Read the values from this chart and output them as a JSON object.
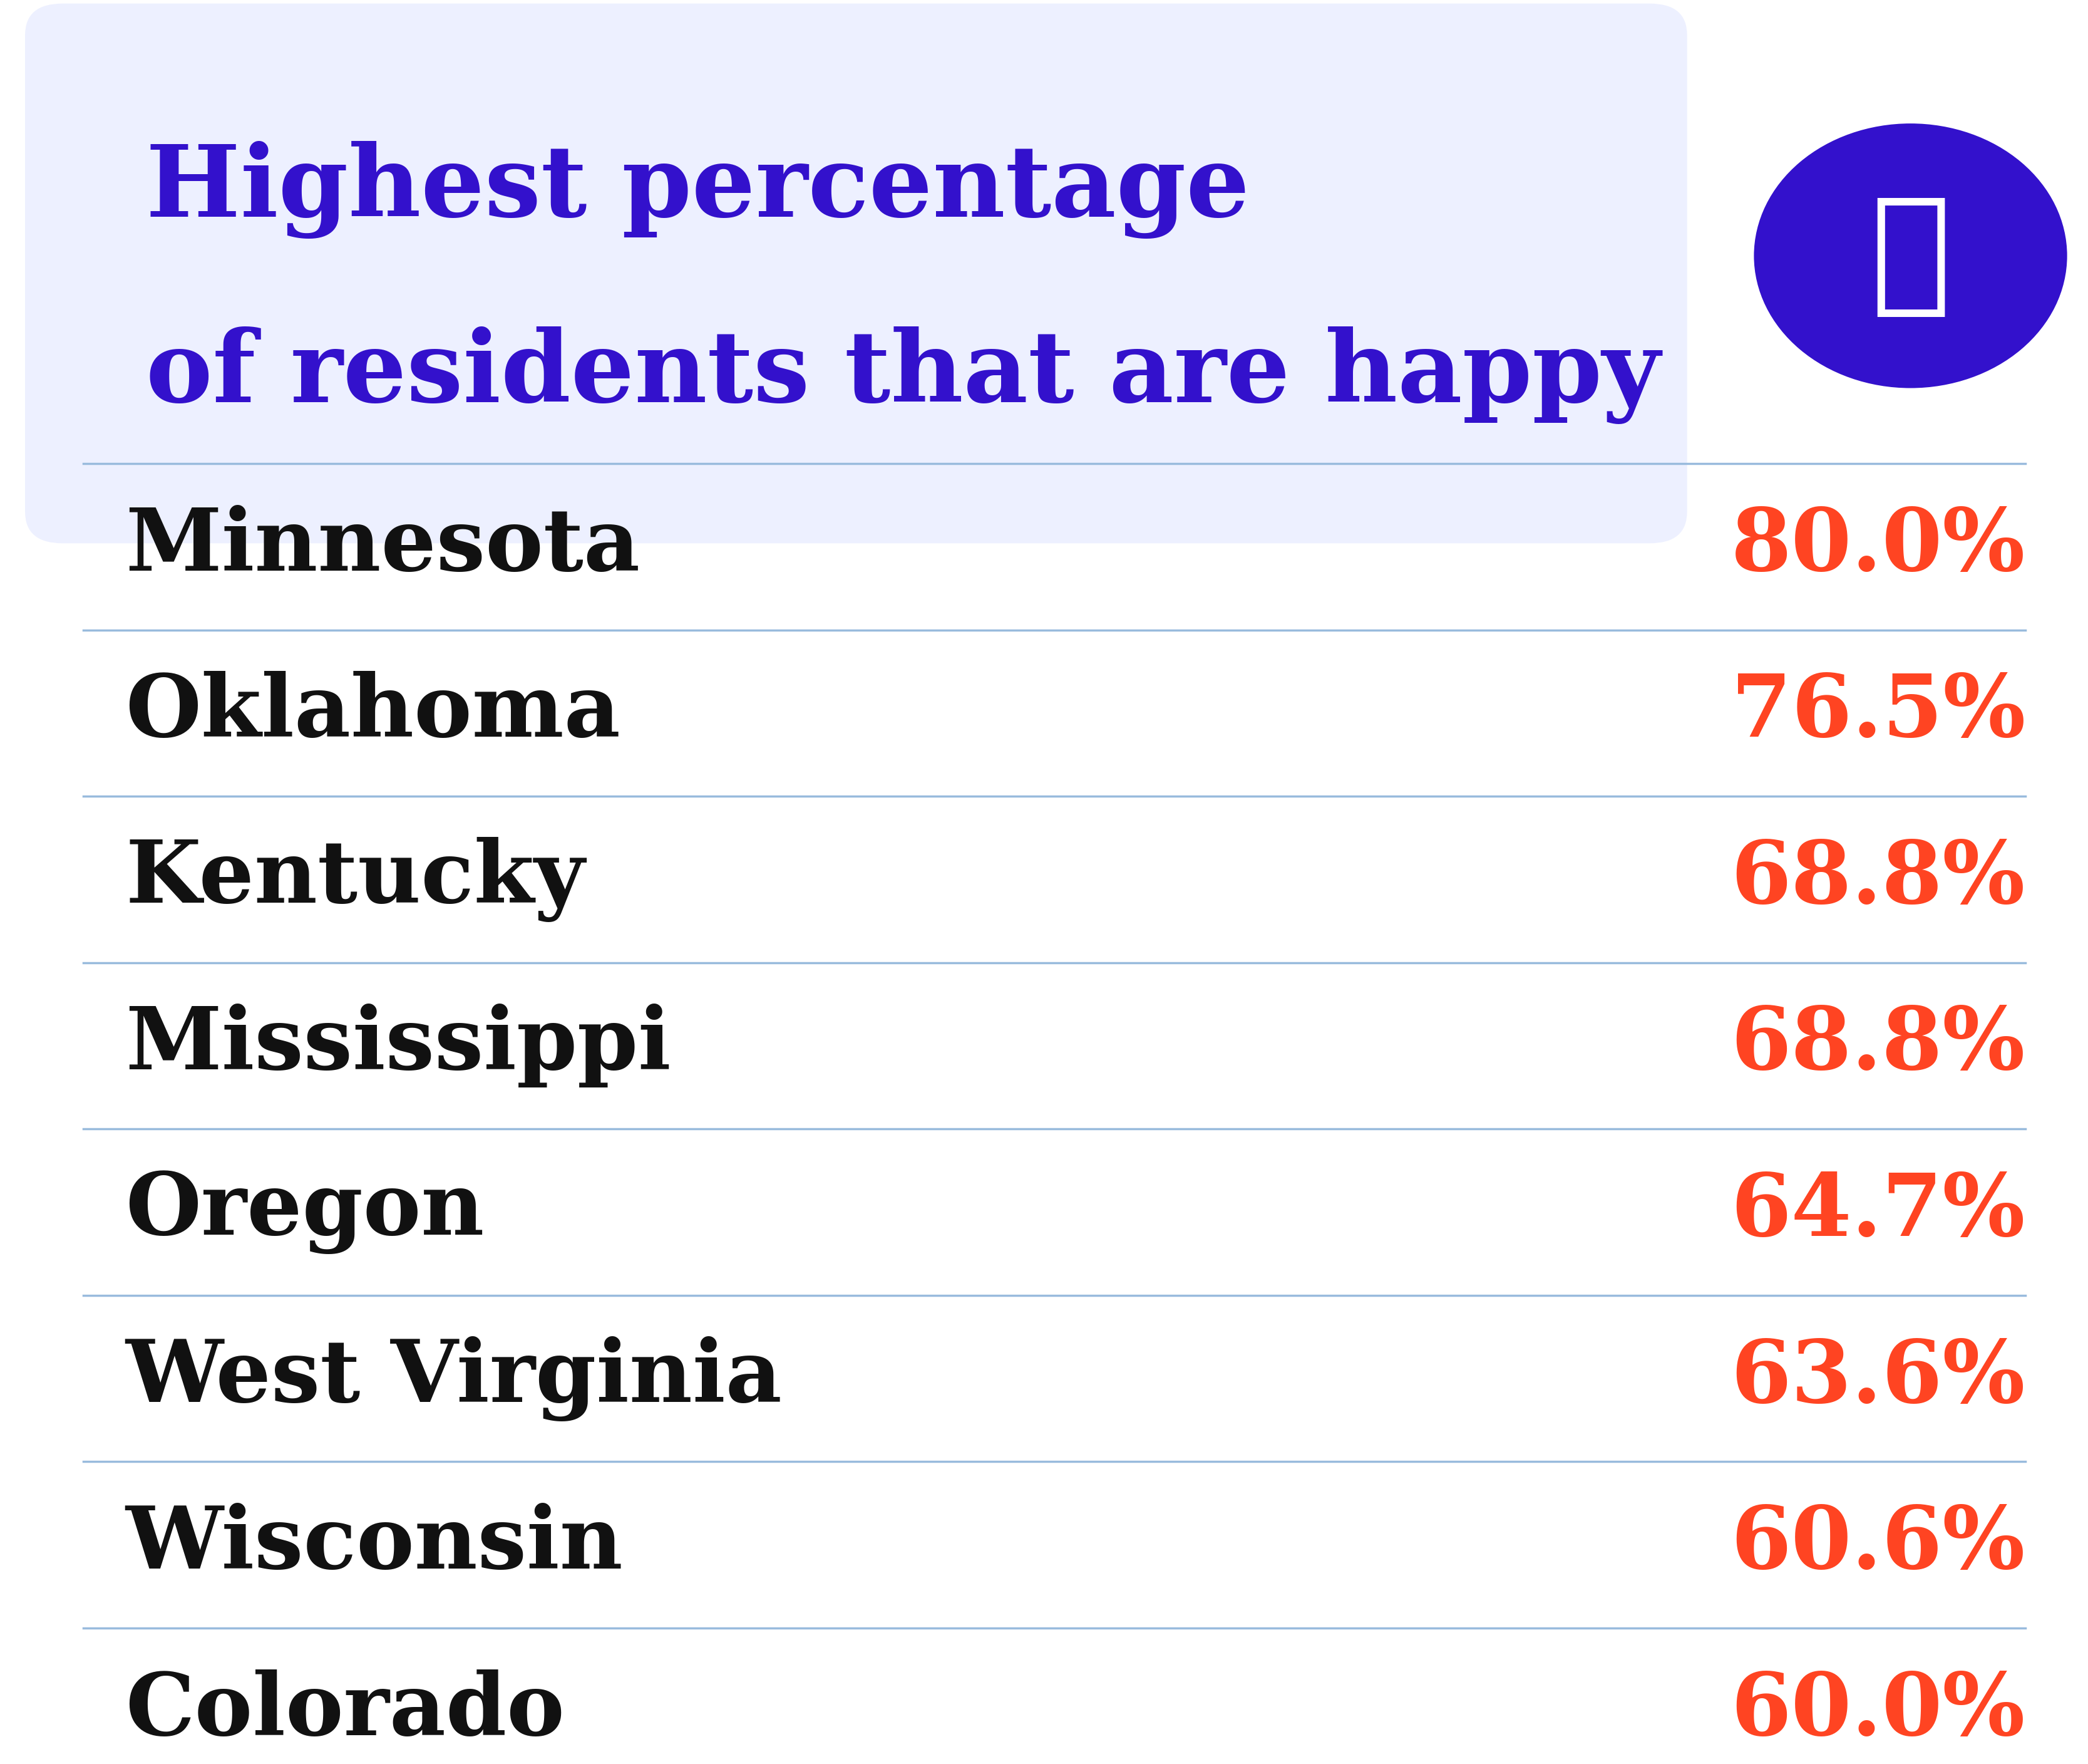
{
  "title_line1": "Highest percentage",
  "title_line2": "of residents that are happy",
  "title_color": "#3311cc",
  "background_color": "#ffffff",
  "header_bg_color": "#edf0ff",
  "states": [
    "Minnesota",
    "Oklahoma",
    "Kentucky",
    "Mississippi",
    "Oregon",
    "West Virginia",
    "Wisconsin",
    "Colorado"
  ],
  "values": [
    "80.0%",
    "76.5%",
    "68.8%",
    "68.8%",
    "64.7%",
    "63.6%",
    "60.6%",
    "60.0%"
  ],
  "state_color": "#111111",
  "value_color": "#ff4422",
  "divider_color": "#99bbdd",
  "icon_bg_color": "#3311cc",
  "figsize": [
    33.35,
    28.16
  ],
  "title_fontsize": 115,
  "state_fontsize": 100,
  "value_fontsize": 100
}
